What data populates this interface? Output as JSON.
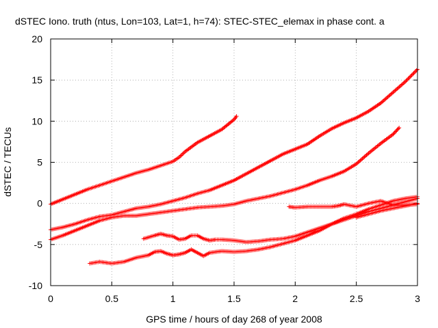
{
  "chart_data": {
    "type": "scatter",
    "title": "dSTEC Iono. truth (ntus, Lon=103, Lat=1, h=74): STEC-STEC_elemax in phase cont. a",
    "xlabel": "GPS time / hours of day 268 of year 2008",
    "ylabel": "dSTEC  / TECUs",
    "xlim": [
      0,
      3
    ],
    "ylim": [
      -10,
      20
    ],
    "xticks": [
      0,
      0.5,
      1,
      1.5,
      2,
      2.5,
      3
    ],
    "yticks": [
      -10,
      -5,
      0,
      5,
      10,
      15,
      20
    ],
    "xtick_labels": [
      "0",
      "0.5",
      "1",
      "1.5",
      "2",
      "2.5",
      "3"
    ],
    "ytick_labels": [
      "-10",
      "-5",
      "0",
      "5",
      "10",
      "15",
      "20"
    ],
    "grid": true,
    "marker": "plus",
    "marker_color": "#ff0000",
    "series": [
      {
        "x": [
          0,
          0.1,
          0.2,
          0.3,
          0.4,
          0.5,
          0.6,
          0.7,
          0.8,
          0.9,
          1.0,
          1.05,
          1.1,
          1.2,
          1.3,
          1.4,
          1.45,
          1.5,
          1.52
        ],
        "y": [
          -0.1,
          0.5,
          1.1,
          1.7,
          2.2,
          2.7,
          3.2,
          3.7,
          4.1,
          4.6,
          5.1,
          5.6,
          6.3,
          7.4,
          8.2,
          9.0,
          9.6,
          10.2,
          10.6
        ]
      },
      {
        "x": [
          0,
          0.1,
          0.2,
          0.3,
          0.4,
          0.5,
          0.6,
          0.7,
          0.8,
          0.9,
          1.0,
          1.1,
          1.2,
          1.3,
          1.4,
          1.5,
          1.6,
          1.7,
          1.8,
          1.9,
          2.0,
          2.1,
          2.2,
          2.3,
          2.4,
          2.5,
          2.6,
          2.7,
          2.8,
          2.9,
          3.0
        ],
        "y": [
          -3.2,
          -2.9,
          -2.5,
          -2.0,
          -1.6,
          -1.4,
          -1.0,
          -0.6,
          -0.4,
          -0.1,
          0.3,
          0.7,
          1.2,
          1.6,
          2.2,
          2.8,
          3.6,
          4.4,
          5.2,
          6.0,
          6.6,
          7.2,
          8.2,
          9.1,
          9.8,
          10.4,
          11.2,
          12.2,
          13.5,
          14.8,
          16.3
        ]
      },
      {
        "x": [
          0,
          0.1,
          0.2,
          0.3,
          0.4,
          0.5,
          0.6,
          0.7,
          0.8,
          0.9,
          1.0,
          1.1,
          1.2,
          1.3,
          1.4,
          1.5,
          1.6,
          1.7,
          1.8,
          1.9,
          2.0,
          2.1,
          2.2,
          2.3,
          2.4,
          2.5,
          2.6,
          2.7,
          2.8,
          2.85
        ],
        "y": [
          -4.4,
          -3.9,
          -3.3,
          -2.7,
          -2.1,
          -1.7,
          -1.5,
          -1.5,
          -1.3,
          -1.1,
          -0.9,
          -0.7,
          -0.5,
          -0.4,
          -0.3,
          -0.1,
          0.3,
          0.6,
          0.9,
          1.3,
          1.7,
          2.2,
          2.8,
          3.3,
          3.9,
          4.8,
          6.1,
          7.3,
          8.4,
          9.2
        ]
      },
      {
        "x": [
          0.76,
          0.85,
          0.9,
          0.95,
          1.0,
          1.05,
          1.1,
          1.15,
          1.2,
          1.25,
          1.3,
          1.35,
          1.4,
          1.5,
          1.6,
          1.7,
          1.8,
          1.9,
          2.0,
          2.1,
          2.2,
          2.3,
          2.4,
          2.5,
          2.6,
          2.7,
          2.8,
          2.9,
          3.0
        ],
        "y": [
          -4.3,
          -3.9,
          -3.7,
          -3.9,
          -4.0,
          -4.4,
          -4.3,
          -3.9,
          -3.9,
          -4.3,
          -4.5,
          -4.4,
          -4.4,
          -4.5,
          -4.7,
          -4.6,
          -4.4,
          -4.3,
          -4.0,
          -3.5,
          -3.0,
          -2.5,
          -2.0,
          -1.5,
          -1.0,
          -0.6,
          -0.2,
          0.2,
          0.6
        ]
      },
      {
        "x": [
          0.32,
          0.4,
          0.5,
          0.6,
          0.7,
          0.8,
          0.85,
          0.9,
          0.95,
          1.0,
          1.05,
          1.1,
          1.15,
          1.2,
          1.25,
          1.3,
          1.4,
          1.5,
          1.6,
          1.7,
          1.8,
          1.9,
          2.0,
          2.1,
          2.2,
          2.3,
          2.4,
          2.5,
          2.6,
          2.7,
          2.8,
          2.9,
          3.0
        ],
        "y": [
          -7.3,
          -7.1,
          -7.3,
          -7.1,
          -6.6,
          -6.3,
          -5.9,
          -5.8,
          -6.1,
          -6.3,
          -6.2,
          -6.0,
          -5.6,
          -6.0,
          -6.4,
          -6.0,
          -5.8,
          -5.9,
          -5.8,
          -5.6,
          -5.3,
          -4.9,
          -4.5,
          -3.9,
          -3.3,
          -2.5,
          -1.8,
          -1.3,
          -0.7,
          -0.2,
          0.3,
          0.6,
          0.8
        ]
      },
      {
        "x": [
          1.95,
          2.0,
          2.1,
          2.2,
          2.3,
          2.35,
          2.4,
          2.5,
          2.6,
          2.7,
          2.8,
          2.9,
          3.0
        ],
        "y": [
          -0.4,
          -0.5,
          -0.4,
          -0.4,
          -0.4,
          -0.3,
          -0.1,
          -0.4,
          0.0,
          0.3,
          -0.2,
          -0.2,
          -0.1
        ]
      },
      {
        "x": [
          2.5,
          2.6,
          2.7,
          2.8,
          2.9,
          3.0
        ],
        "y": [
          -1.7,
          -1.3,
          -0.9,
          -0.6,
          -0.3,
          0.0
        ]
      }
    ]
  }
}
